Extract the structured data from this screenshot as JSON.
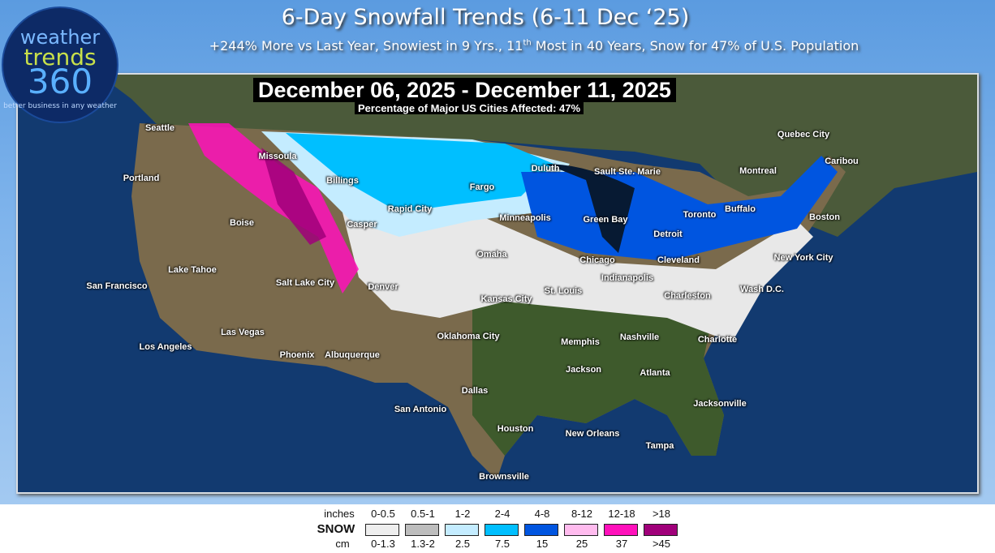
{
  "header": {
    "title": "6-Day Snowfall Trends (6-11 Dec ‘25)",
    "subtitle_pre": "+244% More vs Last Year, Snowiest in 9 Yrs., 11",
    "subtitle_sup": "th",
    "subtitle_post": " Most in 40 Years, Snow for 47% of U.S. Population"
  },
  "logo": {
    "line1": "weather",
    "line2": "trends",
    "line3": "360",
    "tagline": "better business in any weather"
  },
  "map": {
    "date_range": "December 06, 2025 - December 11, 2025",
    "affected": "Percentage of Major US Cities Affected:  47%",
    "cities": [
      "Seattle",
      "Portland",
      "Missoula",
      "Billings",
      "Boise",
      "Casper",
      "Rapid City",
      "Fargo",
      "Duluth",
      "Sault Ste. Marie",
      "Minneapolis",
      "Green Bay",
      "Quebec City",
      "Montreal",
      "Caribou",
      "Toronto",
      "Buffalo",
      "Boston",
      "Detroit",
      "Chicago",
      "Cleveland",
      "New York City",
      "Omaha",
      "Lake Tahoe",
      "San Francisco",
      "Salt Lake City",
      "Denver",
      "Indianapolis",
      "Wash D.C.",
      "Charleston",
      "St. Louis",
      "Kansas City",
      "Las Vegas",
      "Oklahoma City",
      "Memphis",
      "Nashville",
      "Charlotte",
      "Los Angeles",
      "Phoenix",
      "Albuquerque",
      "Jackson",
      "Atlanta",
      "Dallas",
      "Jacksonville",
      "San Antonio",
      "Houston",
      "New Orleans",
      "Tampa",
      "Brownsville"
    ]
  },
  "legend": {
    "label": "SNOW",
    "inches_label": "inches",
    "cm_label": "cm",
    "bins": [
      {
        "inches": "0-0.5",
        "cm": "0-1.3",
        "color": "#eeeeee"
      },
      {
        "inches": "0.5-1",
        "cm": "1.3-2",
        "color": "#bdbdbd"
      },
      {
        "inches": "1-2",
        "cm": "2.5",
        "color": "#c4ecff"
      },
      {
        "inches": "2-4",
        "cm": "7.5",
        "color": "#00bfff"
      },
      {
        "inches": "4-8",
        "cm": "15",
        "color": "#0055e0"
      },
      {
        "inches": "8-12",
        "cm": "25",
        "color": "#ffbbee"
      },
      {
        "inches": "12-18",
        "cm": "37",
        "color": "#ff11bb"
      },
      {
        "inches": ">18",
        "cm": ">45",
        "color": "#a0007a"
      }
    ]
  }
}
